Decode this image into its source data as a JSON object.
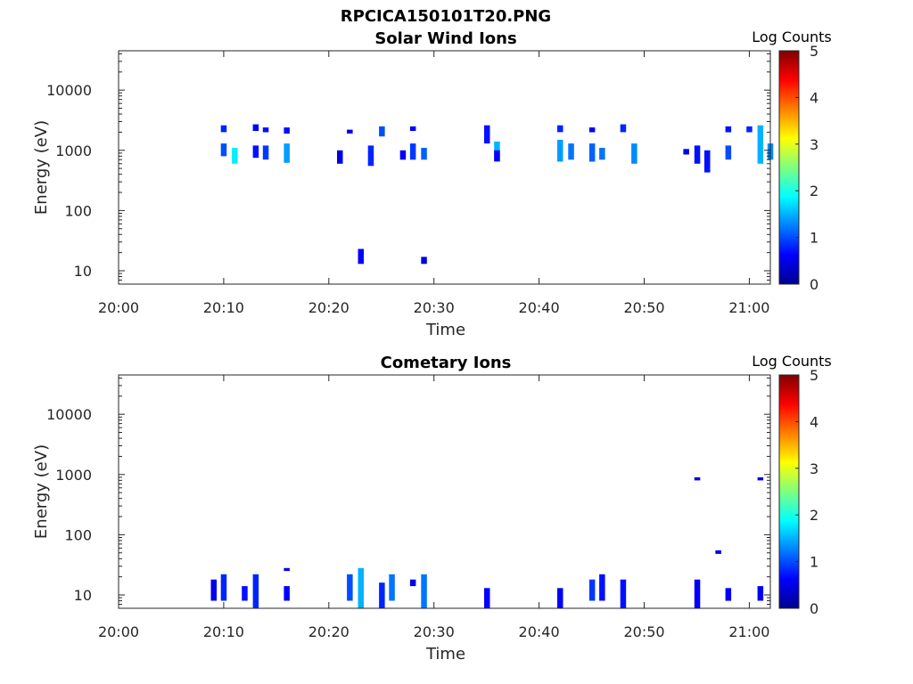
{
  "figure_title": "RPCICA150101T20.PNG",
  "chart_data": [
    {
      "type": "heatmap",
      "title": "Solar Wind Ions",
      "xlabel": "Time",
      "ylabel": "Energy (eV)",
      "x_ticks": [
        "20:00",
        "20:10",
        "20:20",
        "20:30",
        "20:40",
        "20:50",
        "21:00"
      ],
      "xlim": [
        "20:00",
        "21:02"
      ],
      "y_scale": "log",
      "y_ticks": [
        "10",
        "100",
        "1000",
        "10000"
      ],
      "ylim": [
        6,
        45000
      ],
      "colorbar": {
        "label": "Log Counts",
        "ticks": [
          "0",
          "1",
          "2",
          "3",
          "4",
          "5"
        ],
        "range": [
          0,
          5
        ],
        "colormap": "jet"
      },
      "cells": [
        {
          "t": "20:10",
          "e_lo": 2000,
          "e_hi": 2600,
          "v": 0.8
        },
        {
          "t": "20:10",
          "e_lo": 800,
          "e_hi": 1300,
          "v": 1.0
        },
        {
          "t": "20:11",
          "e_lo": 600,
          "e_hi": 1100,
          "v": 1.8
        },
        {
          "t": "20:13",
          "e_lo": 2100,
          "e_hi": 2700,
          "v": 0.6
        },
        {
          "t": "20:13",
          "e_lo": 750,
          "e_hi": 1200,
          "v": 0.7
        },
        {
          "t": "20:14",
          "e_lo": 2000,
          "e_hi": 2400,
          "v": 0.7
        },
        {
          "t": "20:14",
          "e_lo": 700,
          "e_hi": 1200,
          "v": 0.9
        },
        {
          "t": "20:16",
          "e_lo": 1900,
          "e_hi": 2400,
          "v": 0.7
        },
        {
          "t": "20:16",
          "e_lo": 620,
          "e_hi": 1300,
          "v": 1.4
        },
        {
          "t": "20:21",
          "e_lo": 600,
          "e_hi": 1000,
          "v": 0.5
        },
        {
          "t": "20:22",
          "e_lo": 1900,
          "e_hi": 2200,
          "v": 0.5
        },
        {
          "t": "20:23",
          "e_lo": 13,
          "e_hi": 23,
          "v": 0.6
        },
        {
          "t": "20:24",
          "e_lo": 550,
          "e_hi": 1200,
          "v": 0.8
        },
        {
          "t": "20:25",
          "e_lo": 1700,
          "e_hi": 2500,
          "v": 1.0
        },
        {
          "t": "20:27",
          "e_lo": 700,
          "e_hi": 1000,
          "v": 0.6
        },
        {
          "t": "20:28",
          "e_lo": 700,
          "e_hi": 1300,
          "v": 0.9
        },
        {
          "t": "20:28",
          "e_lo": 2100,
          "e_hi": 2500,
          "v": 0.6
        },
        {
          "t": "20:29",
          "e_lo": 13,
          "e_hi": 17,
          "v": 0.5
        },
        {
          "t": "20:29",
          "e_lo": 700,
          "e_hi": 1100,
          "v": 1.1
        },
        {
          "t": "20:35",
          "e_lo": 1300,
          "e_hi": 2600,
          "v": 0.7
        },
        {
          "t": "20:36",
          "e_lo": 700,
          "e_hi": 1400,
          "v": 1.5
        },
        {
          "t": "20:36",
          "e_lo": 650,
          "e_hi": 1000,
          "v": 0.6
        },
        {
          "t": "20:42",
          "e_lo": 2000,
          "e_hi": 2600,
          "v": 0.8
        },
        {
          "t": "20:42",
          "e_lo": 650,
          "e_hi": 1500,
          "v": 1.4
        },
        {
          "t": "20:43",
          "e_lo": 700,
          "e_hi": 1300,
          "v": 1.2
        },
        {
          "t": "20:45",
          "e_lo": 2000,
          "e_hi": 2400,
          "v": 0.6
        },
        {
          "t": "20:45",
          "e_lo": 650,
          "e_hi": 1300,
          "v": 1.1
        },
        {
          "t": "20:46",
          "e_lo": 700,
          "e_hi": 1100,
          "v": 1.2
        },
        {
          "t": "20:48",
          "e_lo": 2000,
          "e_hi": 2700,
          "v": 0.8
        },
        {
          "t": "20:49",
          "e_lo": 600,
          "e_hi": 1300,
          "v": 1.3
        },
        {
          "t": "20:54",
          "e_lo": 850,
          "e_hi": 1050,
          "v": 0.5
        },
        {
          "t": "20:55",
          "e_lo": 600,
          "e_hi": 1200,
          "v": 0.7
        },
        {
          "t": "20:56",
          "e_lo": 430,
          "e_hi": 1000,
          "v": 0.7
        },
        {
          "t": "20:58",
          "e_lo": 2000,
          "e_hi": 2500,
          "v": 0.7
        },
        {
          "t": "20:58",
          "e_lo": 700,
          "e_hi": 1200,
          "v": 1.0
        },
        {
          "t": "21:00",
          "e_lo": 2000,
          "e_hi": 2500,
          "v": 0.8
        },
        {
          "t": "21:01",
          "e_lo": 600,
          "e_hi": 2600,
          "v": 1.5
        },
        {
          "t": "21:02",
          "e_lo": 700,
          "e_hi": 1300,
          "v": 1.3
        }
      ]
    },
    {
      "type": "heatmap",
      "title": "Cometary Ions",
      "xlabel": "Time",
      "ylabel": "Energy (eV)",
      "x_ticks": [
        "20:00",
        "20:10",
        "20:20",
        "20:30",
        "20:40",
        "20:50",
        "21:00"
      ],
      "xlim": [
        "20:00",
        "21:02"
      ],
      "y_scale": "log",
      "y_ticks": [
        "10",
        "100",
        "1000",
        "10000"
      ],
      "ylim": [
        6,
        45000
      ],
      "colorbar": {
        "label": "Log Counts",
        "ticks": [
          "0",
          "1",
          "2",
          "3",
          "4",
          "5"
        ],
        "range": [
          0,
          5
        ],
        "colormap": "jet"
      },
      "cells": [
        {
          "t": "20:09",
          "e_lo": 8,
          "e_hi": 18,
          "v": 0.5
        },
        {
          "t": "20:10",
          "e_lo": 8,
          "e_hi": 22,
          "v": 0.8
        },
        {
          "t": "20:12",
          "e_lo": 8,
          "e_hi": 14,
          "v": 0.7
        },
        {
          "t": "20:13",
          "e_lo": 6,
          "e_hi": 22,
          "v": 0.8
        },
        {
          "t": "20:16",
          "e_lo": 8,
          "e_hi": 14,
          "v": 0.6
        },
        {
          "t": "20:16",
          "e_lo": 25,
          "e_hi": 28,
          "v": 0.5
        },
        {
          "t": "20:22",
          "e_lo": 8,
          "e_hi": 22,
          "v": 1.0
        },
        {
          "t": "20:23",
          "e_lo": 6,
          "e_hi": 28,
          "v": 1.5
        },
        {
          "t": "20:25",
          "e_lo": 6,
          "e_hi": 16,
          "v": 0.8
        },
        {
          "t": "20:26",
          "e_lo": 8,
          "e_hi": 22,
          "v": 1.2
        },
        {
          "t": "20:28",
          "e_lo": 14,
          "e_hi": 18,
          "v": 0.5
        },
        {
          "t": "20:29",
          "e_lo": 6,
          "e_hi": 22,
          "v": 1.2
        },
        {
          "t": "20:35",
          "e_lo": 6,
          "e_hi": 13,
          "v": 0.6
        },
        {
          "t": "20:42",
          "e_lo": 6,
          "e_hi": 13,
          "v": 0.6
        },
        {
          "t": "20:45",
          "e_lo": 8,
          "e_hi": 18,
          "v": 0.9
        },
        {
          "t": "20:46",
          "e_lo": 8,
          "e_hi": 22,
          "v": 0.7
        },
        {
          "t": "20:48",
          "e_lo": 6,
          "e_hi": 18,
          "v": 0.7
        },
        {
          "t": "20:55",
          "e_lo": 6,
          "e_hi": 18,
          "v": 0.6
        },
        {
          "t": "20:55",
          "e_lo": 800,
          "e_hi": 900,
          "v": 0.5
        },
        {
          "t": "20:57",
          "e_lo": 48,
          "e_hi": 55,
          "v": 0.5
        },
        {
          "t": "20:58",
          "e_lo": 8,
          "e_hi": 13,
          "v": 0.6
        },
        {
          "t": "21:01",
          "e_lo": 8,
          "e_hi": 14,
          "v": 0.6
        },
        {
          "t": "21:01",
          "e_lo": 800,
          "e_hi": 900,
          "v": 0.5
        }
      ]
    }
  ]
}
